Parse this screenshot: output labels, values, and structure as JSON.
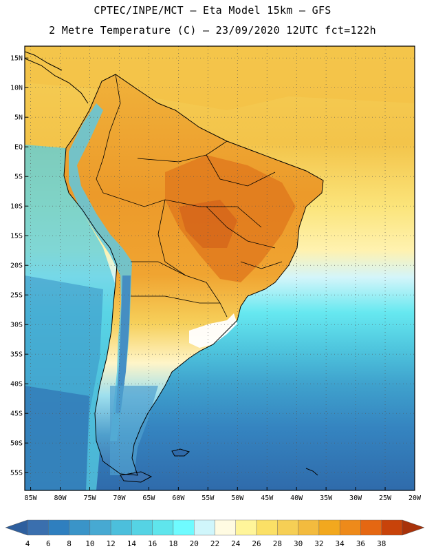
{
  "header": {
    "line1": "CPTEC/INPE/MCT –  Eta Model 15km – GFS",
    "line2": "2 Metre Temperature (C) – 23/09/2020 12UTC fct=122h"
  },
  "map": {
    "lat_labels": [
      "15N",
      "10N",
      "5N",
      "EQ",
      "5S",
      "10S",
      "15S",
      "20S",
      "25S",
      "30S",
      "35S",
      "40S",
      "45S",
      "50S",
      "55S"
    ],
    "lat_values": [
      15,
      10,
      5,
      0,
      -5,
      -10,
      -15,
      -20,
      -25,
      -30,
      -35,
      -40,
      -45,
      -50,
      -55
    ],
    "lon_labels": [
      "85W",
      "80W",
      "75W",
      "70W",
      "65W",
      "60W",
      "55W",
      "50W",
      "45W",
      "40W",
      "35W",
      "30W",
      "25W",
      "20W"
    ],
    "lon_values": [
      -85,
      -80,
      -75,
      -70,
      -65,
      -60,
      -55,
      -50,
      -45,
      -40,
      -35,
      -30,
      -25,
      -20
    ],
    "extent": {
      "lon_min": -86,
      "lon_max": -20,
      "lat_min": -58,
      "lat_max": 17
    }
  },
  "colorbar": {
    "labels": [
      "4",
      "6",
      "8",
      "10",
      "12",
      "14",
      "16",
      "18",
      "20",
      "22",
      "24",
      "26",
      "28",
      "30",
      "32",
      "34",
      "36",
      "38"
    ],
    "colors": [
      "#3a6fae",
      "#2f7fbf",
      "#3a94c8",
      "#47a9d2",
      "#4cbfdc",
      "#55d3e4",
      "#5fe5ec",
      "#6ffbff",
      "#d0f6fb",
      "#fffbe2",
      "#fff59a",
      "#fbe066",
      "#f6cf55",
      "#f3bb3e",
      "#f2a81e",
      "#ee8a1a",
      "#e56712",
      "#c8430a"
    ],
    "low_color": "#2e5f9e",
    "high_color": "#a8320a"
  }
}
